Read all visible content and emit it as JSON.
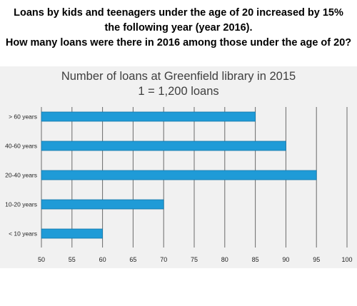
{
  "question": {
    "lines": [
      "Loans by kids and teenagers under the age of 20 increased by 15%",
      "the following year (year 2016).",
      "How many loans were there in 2016 among those under the age of 20?"
    ]
  },
  "chart_data": {
    "type": "bar",
    "orientation": "horizontal",
    "title": "Number of loans at Greenfield library in 2015",
    "subtitle": "1 = 1,200 loans",
    "categories": [
      "> 60 years",
      "40-60 years",
      "20-40 years",
      "10-20 years",
      "< 10 years"
    ],
    "values": [
      85,
      90,
      95,
      70,
      60
    ],
    "xlim": [
      50,
      100
    ],
    "xticks": [
      50,
      55,
      60,
      65,
      70,
      75,
      80,
      85,
      90,
      95,
      100
    ],
    "grid": true,
    "legend": "none",
    "colors": {
      "bar": "#1f9bd7",
      "bar_border": "#1576a8",
      "grid": "#6b6b6b",
      "background": "#f1f1f1",
      "text": "#222222",
      "title": "#3f3f3f"
    }
  }
}
